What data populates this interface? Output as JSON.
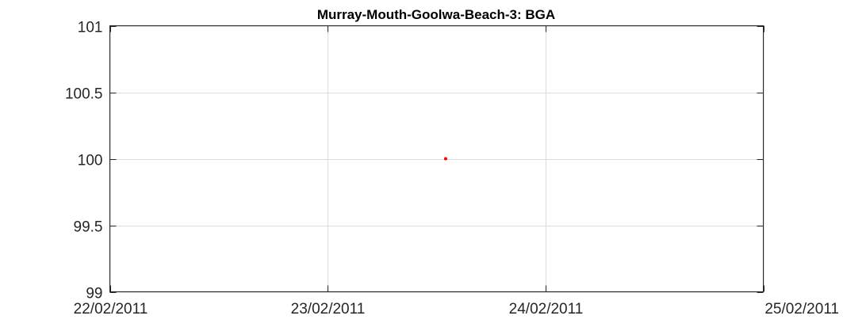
{
  "chart_data": {
    "type": "scatter",
    "title": "Murray-Mouth-Goolwa-Beach-3: BGA",
    "xlabel": "",
    "ylabel": "",
    "x_type": "date",
    "xlim": [
      "22/02/2011",
      "25/02/2011"
    ],
    "ylim": [
      99,
      101
    ],
    "x_ticks": [
      "22/02/2011",
      "23/02/2011",
      "24/02/2011",
      "25/02/2011"
    ],
    "y_ticks": [
      "99",
      "99.5",
      "100",
      "100.5",
      "101"
    ],
    "grid": true,
    "legend": "none",
    "series": [
      {
        "color": "#ff0000",
        "points": [
          {
            "x": "23/02/2011 13:00",
            "y": 100
          }
        ]
      }
    ]
  }
}
